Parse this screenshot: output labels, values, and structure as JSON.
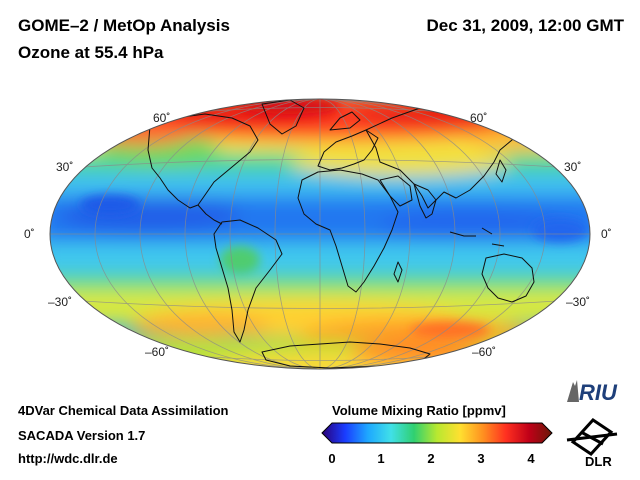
{
  "header": {
    "title_line1": "GOME–2 / MetOp Analysis",
    "title_line2": "Ozone at 55.4 hPa",
    "datetime": "Dec 31, 2009, 12:00 GMT"
  },
  "map": {
    "projection": "Hammer-Aitoff (global)",
    "lat_labels_left": [
      "60˚",
      "30˚",
      "0˚",
      "–30˚",
      "–60˚"
    ],
    "lat_labels_right": [
      "60˚",
      "30˚",
      "0˚",
      "–30˚",
      "–60˚"
    ]
  },
  "footer": {
    "line1": "4DVar Chemical Data Assimilation",
    "line2": "SACADA Version 1.7",
    "line3": "http://wdc.dlr.de"
  },
  "colorbar": {
    "title": "Volume Mixing Ratio [ppmv]",
    "ticks": [
      "0",
      "1",
      "2",
      "3",
      "4"
    ],
    "colors": [
      "#2a0078",
      "#1a3cff",
      "#1ea8ff",
      "#40e0e8",
      "#30d070",
      "#b8e830",
      "#ffe030",
      "#ff9020",
      "#ff3020",
      "#c00018",
      "#6a1808"
    ]
  },
  "logos": {
    "riu": "RIU",
    "dlr": "DLR"
  }
}
